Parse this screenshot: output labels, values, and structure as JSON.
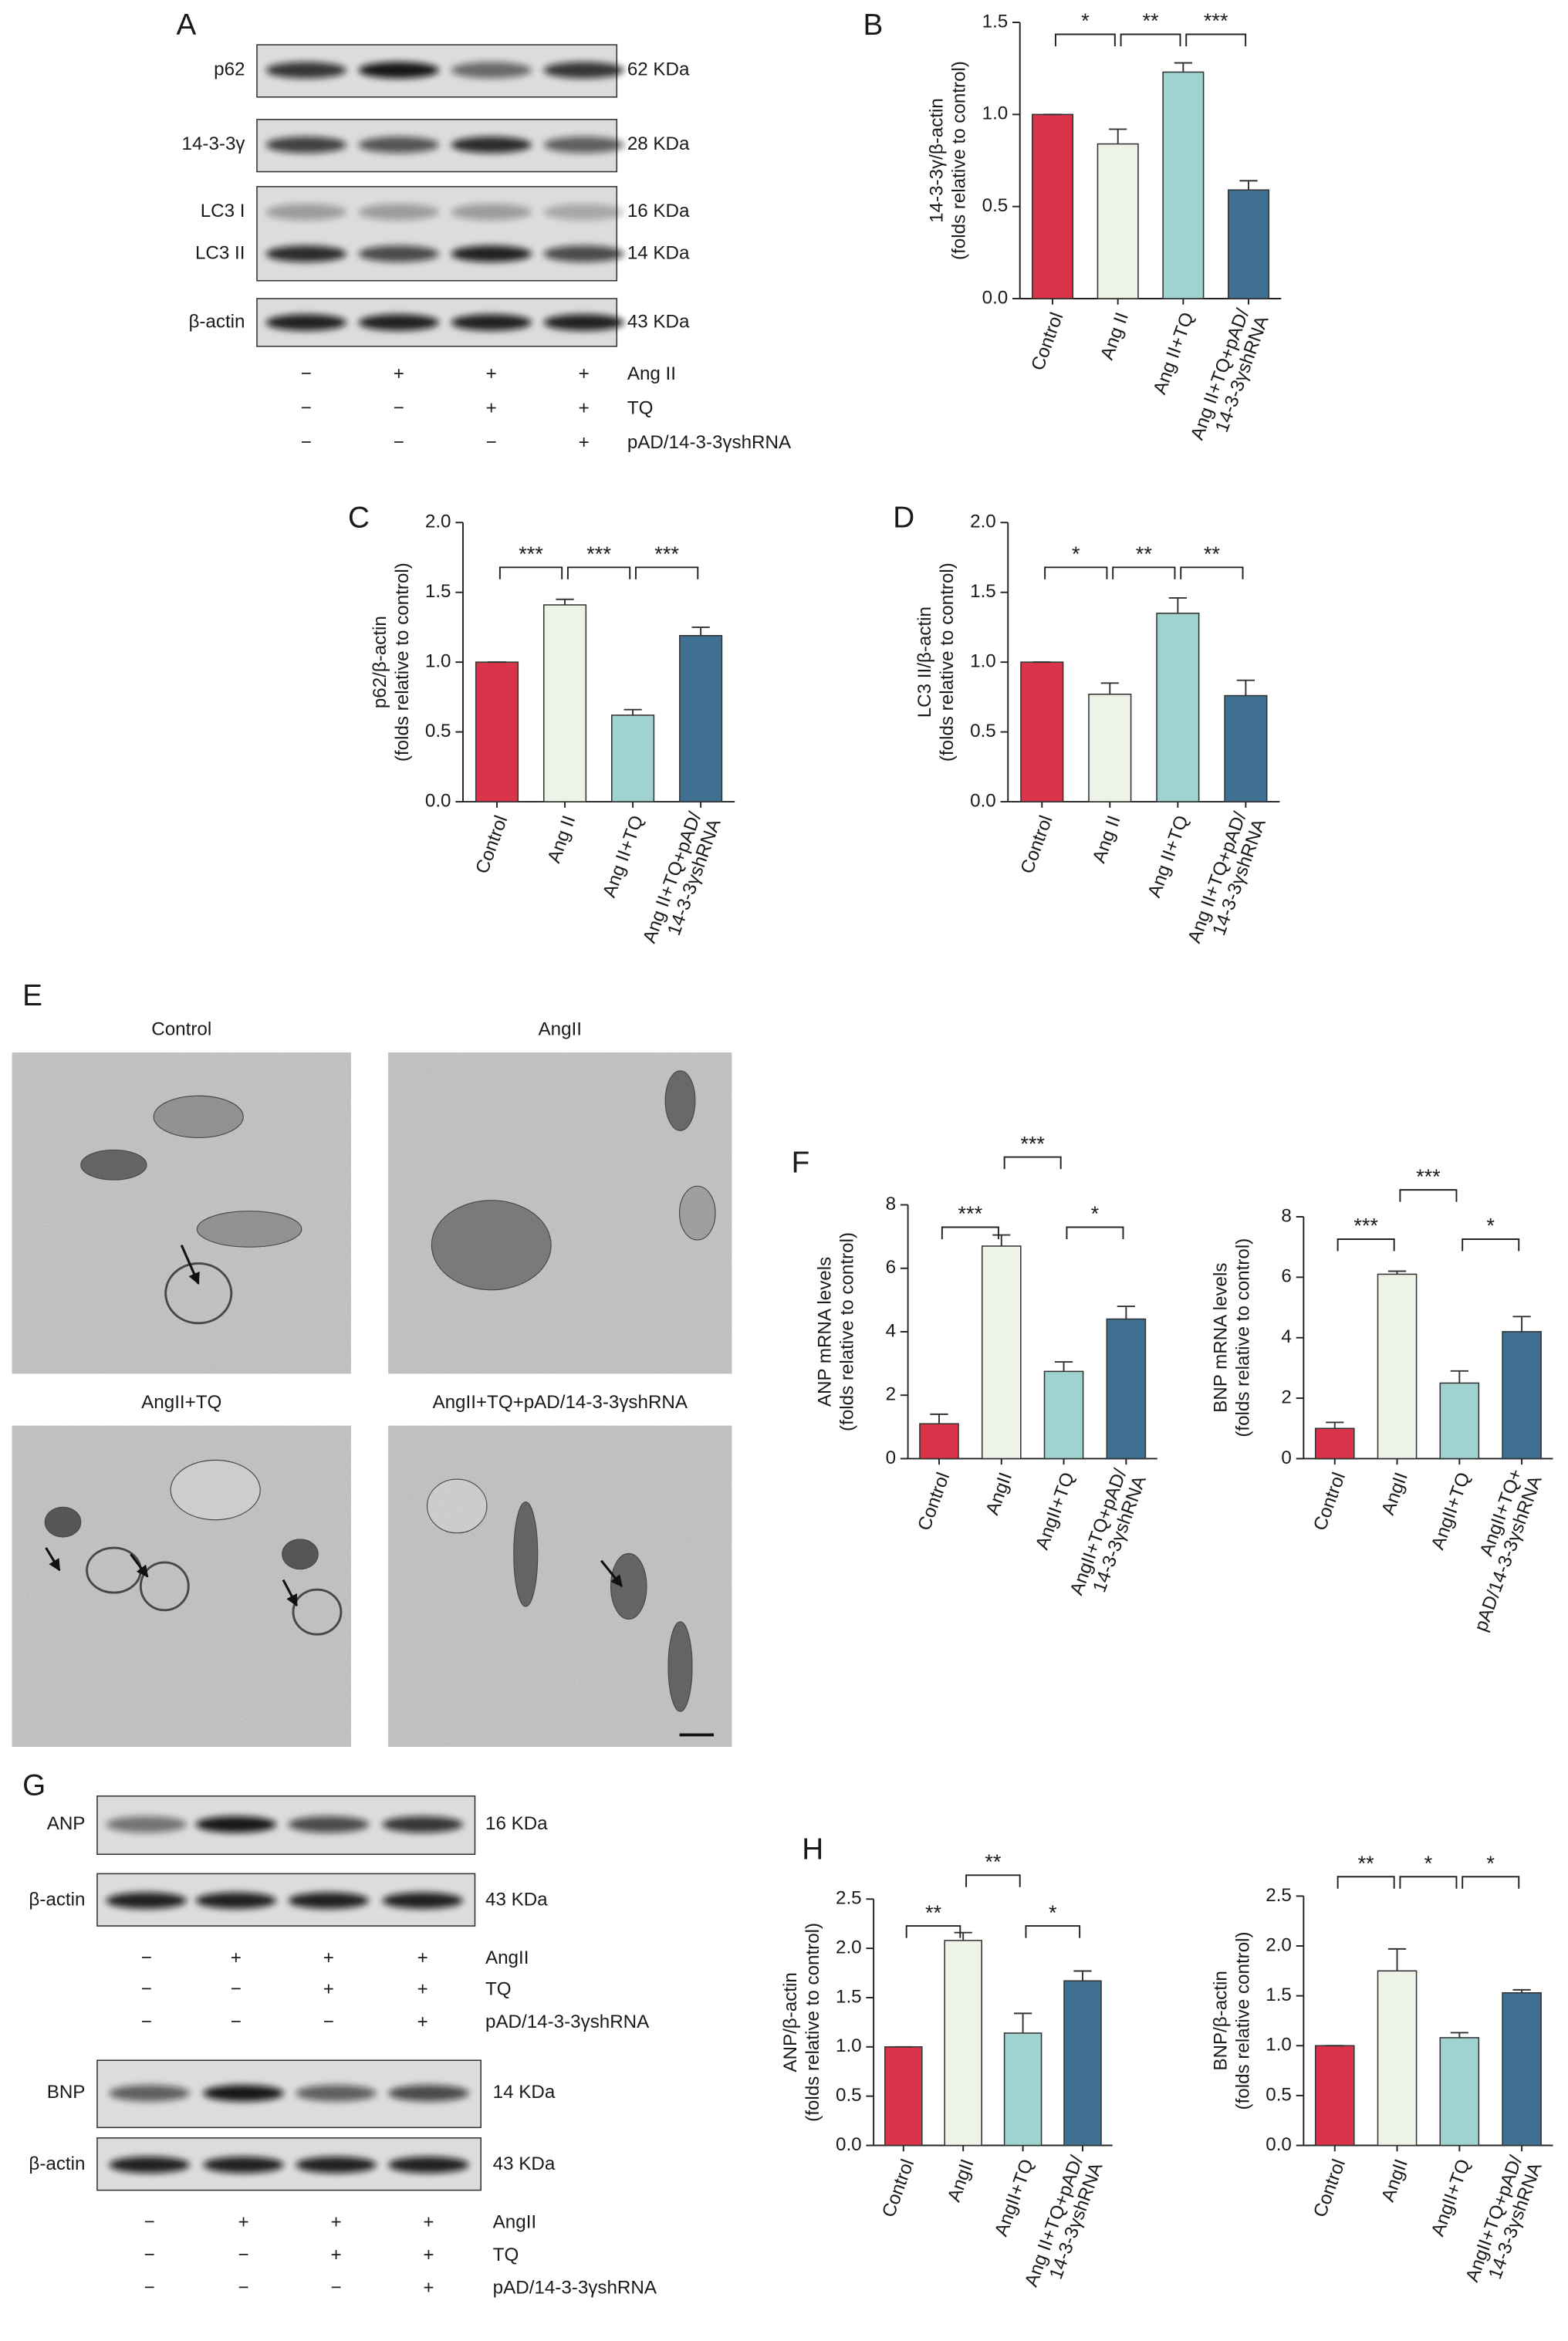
{
  "panel_labels": [
    "A",
    "B",
    "C",
    "D",
    "E",
    "F",
    "G",
    "H"
  ],
  "blot_A": {
    "rows": [
      {
        "label": "p62",
        "size": "62 KDa"
      },
      {
        "label": "14-3-3γ",
        "size": "28 KDa"
      },
      {
        "label": "LC3 I",
        "size": "16 KDa"
      },
      {
        "label": "LC3 II",
        "size": "14 KDa"
      },
      {
        "label": "β-actin",
        "size": "43 KDa"
      }
    ],
    "treatments": [
      {
        "name": "Ang II",
        "signs": [
          "−",
          "+",
          "+",
          "+"
        ]
      },
      {
        "name": "TQ",
        "signs": [
          "−",
          "−",
          "+",
          "+"
        ]
      },
      {
        "name": "pAD/14-3-3γshRNA",
        "signs": [
          "−",
          "−",
          "−",
          "+"
        ]
      }
    ]
  },
  "em_titles": [
    "Control",
    "AngII",
    "AngII+TQ",
    "AngII+TQ+pAD/14-3-3γshRNA"
  ],
  "blot_G_ANP": {
    "rows": [
      {
        "label": "ANP",
        "size": "16 KDa"
      },
      {
        "label": "β-actin",
        "size": "43 KDa"
      }
    ],
    "treatments": [
      {
        "name": "AngII",
        "signs": [
          "−",
          "+",
          "+",
          "+"
        ]
      },
      {
        "name": "TQ",
        "signs": [
          "−",
          "−",
          "+",
          "+"
        ]
      },
      {
        "name": "pAD/14-3-3γshRNA",
        "signs": [
          "−",
          "−",
          "−",
          "+"
        ]
      }
    ]
  },
  "blot_G_BNP": {
    "rows": [
      {
        "label": "BNP",
        "size": "14 KDa"
      },
      {
        "label": "β-actin",
        "size": "43 KDa"
      }
    ],
    "treatments": [
      {
        "name": "AngII",
        "signs": [
          "−",
          "+",
          "+",
          "+"
        ]
      },
      {
        "name": "TQ",
        "signs": [
          "−",
          "−",
          "+",
          "+"
        ]
      },
      {
        "name": "pAD/14-3-3γshRNA",
        "signs": [
          "−",
          "−",
          "−",
          "+"
        ]
      }
    ]
  },
  "chart_data": [
    {
      "type": "bar",
      "ylabel": [
        "14-3-3γ/β-actin",
        "(folds relative to control)"
      ],
      "categories": [
        "Control",
        "Ang II",
        "Ang II+TQ",
        "Ang II+TQ+pAD/\n14-3-3γshRNA"
      ],
      "values": [
        1.0,
        0.84,
        1.23,
        0.59
      ],
      "errors": [
        0,
        0.08,
        0.05,
        0.05
      ],
      "colors": [
        "#d9344a",
        "#eef3e8",
        "#9fd3cf",
        "#3f6f91"
      ],
      "significance": [
        "*",
        "**",
        "***"
      ],
      "ylim": [
        0,
        1.5
      ],
      "yticks": [
        {
          "value": 0,
          "label": "0.0"
        },
        0.5,
        {
          "value": 1,
          "label": "1.0"
        },
        1.5
      ]
    },
    {
      "type": "bar",
      "ylabel": [
        "p62/β-actin",
        "(folds relative to control)"
      ],
      "categories": [
        "Control",
        "Ang II",
        "Ang II+TQ",
        "Ang II+TQ+pAD/\n14-3-3γshRNA"
      ],
      "values": [
        1.0,
        1.41,
        0.62,
        1.19
      ],
      "errors": [
        0,
        0.04,
        0.04,
        0.06
      ],
      "colors": [
        "#d9344a",
        "#eef3e8",
        "#9fd3cf",
        "#3f6f91"
      ],
      "significance": [
        "***",
        "***",
        "***"
      ],
      "ylim": [
        0,
        2
      ],
      "yticks": [
        {
          "value": 0,
          "label": "0.0"
        },
        0.5,
        {
          "value": 1,
          "label": "1.0"
        },
        1.5,
        {
          "value": 2,
          "label": "2.0"
        }
      ]
    },
    {
      "type": "bar",
      "ylabel": [
        "LC3 II/β-actin",
        "(folds relative to control)"
      ],
      "categories": [
        "Control",
        "Ang II",
        "Ang II+TQ",
        "Ang II+TQ+pAD/\n14-3-3γshRNA"
      ],
      "values": [
        1.0,
        0.77,
        1.35,
        0.76
      ],
      "errors": [
        0,
        0.08,
        0.11,
        0.11
      ],
      "colors": [
        "#d9344a",
        "#eef3e8",
        "#9fd3cf",
        "#3f6f91"
      ],
      "significance": [
        "*",
        "**",
        "**"
      ],
      "ylim": [
        0,
        2
      ],
      "yticks": [
        {
          "value": 0,
          "label": "0.0"
        },
        0.5,
        {
          "value": 1,
          "label": "1.0"
        },
        1.5,
        {
          "value": 2,
          "label": "2.0"
        }
      ]
    },
    {
      "type": "bar",
      "ylabel": [
        "ANP mRNA levels",
        "(folds relative to control)"
      ],
      "categories": [
        "Control",
        "AngII",
        "AngII+TQ",
        "AngII+TQ+pAD/\n14-3-3γshRNA"
      ],
      "values": [
        1.1,
        6.7,
        2.75,
        4.4
      ],
      "errors": [
        0.3,
        0.35,
        0.3,
        0.4
      ],
      "colors": [
        "#d9344a",
        "#eef3e8",
        "#9fd3cf",
        "#3f6f91"
      ],
      "significance": [
        "***",
        "***",
        "*"
      ],
      "ylim": [
        0,
        8
      ],
      "yticks": [
        0,
        2,
        4,
        6,
        8
      ]
    },
    {
      "type": "bar",
      "ylabel": [
        "BNP mRNA levels",
        "(folds relative to control)"
      ],
      "categories": [
        "Control",
        "AngII",
        "AngII+TQ",
        "AngII+TQ+\npAD/14-3-3γshRNA"
      ],
      "values": [
        1.0,
        6.1,
        2.5,
        4.2
      ],
      "errors": [
        0.2,
        0.1,
        0.4,
        0.5
      ],
      "colors": [
        "#d9344a",
        "#eef3e8",
        "#9fd3cf",
        "#3f6f91"
      ],
      "significance": [
        "***",
        "***",
        "*"
      ],
      "ylim": [
        0,
        8
      ],
      "yticks": [
        0,
        2,
        4,
        6,
        8
      ]
    },
    {
      "type": "bar",
      "ylabel": [
        "ANP/β-actin",
        "(folds relative to control)"
      ],
      "categories": [
        "Control",
        "AngII",
        "AngII+TQ",
        "Ang II+TQ+pAD/\n14-3-3γshRNA"
      ],
      "values": [
        1.0,
        2.08,
        1.14,
        1.67
      ],
      "errors": [
        0,
        0.08,
        0.2,
        0.1
      ],
      "colors": [
        "#d9344a",
        "#eef3e8",
        "#9fd3cf",
        "#3f6f91"
      ],
      "significance": [
        "**",
        "**",
        "*"
      ],
      "ylim": [
        0,
        2.5
      ],
      "yticks": [
        {
          "value": 0,
          "label": "0.0"
        },
        0.5,
        {
          "value": 1,
          "label": "1.0"
        },
        1.5,
        {
          "value": 2,
          "label": "2.0"
        },
        2.5
      ]
    },
    {
      "type": "bar",
      "ylabel": [
        "BNP/β-actin",
        "(folds relative control)"
      ],
      "categories": [
        "Control",
        "AngII",
        "AngII+TQ",
        "AngII+TQ+pAD/\n14-3-3γshRNA"
      ],
      "values": [
        1.0,
        1.75,
        1.08,
        1.53
      ],
      "errors": [
        0,
        0.22,
        0.05,
        0.03
      ],
      "colors": [
        "#d9344a",
        "#eef3e8",
        "#9fd3cf",
        "#3f6f91"
      ],
      "significance": [
        "**",
        "*",
        "*"
      ],
      "ylim": [
        0,
        2.5
      ],
      "yticks": [
        {
          "value": 0,
          "label": "0.0"
        },
        0.5,
        {
          "value": 1,
          "label": "1.0"
        },
        1.5,
        {
          "value": 2,
          "label": "2.0"
        },
        2.5
      ]
    }
  ]
}
